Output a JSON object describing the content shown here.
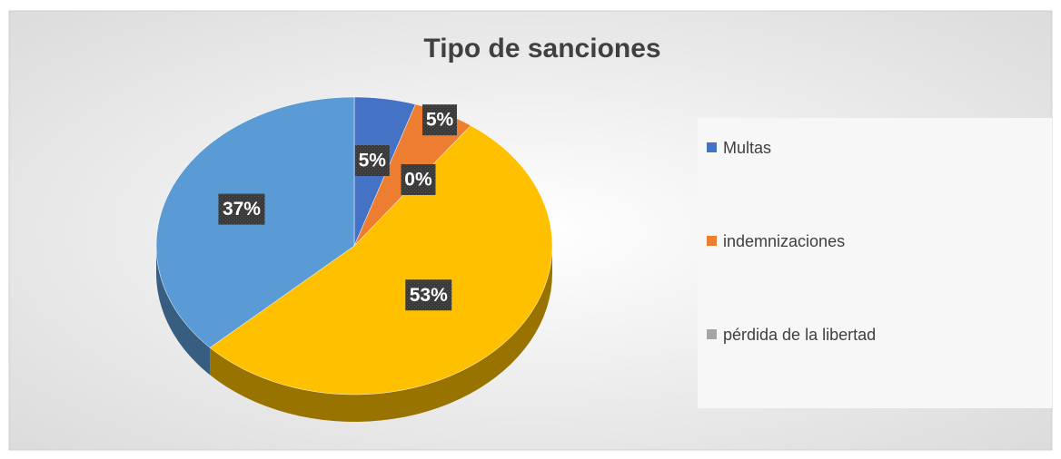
{
  "chart_data": {
    "type": "pie3d",
    "title": "Tipo de sanciones",
    "categories": [
      "Multas",
      "indemnizaciones",
      "pérdida de la libertad",
      null,
      null
    ],
    "values": [
      5,
      5,
      0,
      53,
      37
    ],
    "value_labels": [
      "5%",
      "5%",
      "0%",
      "53%",
      "37%"
    ],
    "colors": [
      "#4472c4",
      "#ed7d31",
      "#a5a5a5",
      "#ffc000",
      "#5b9bd5"
    ],
    "legend": "right"
  }
}
